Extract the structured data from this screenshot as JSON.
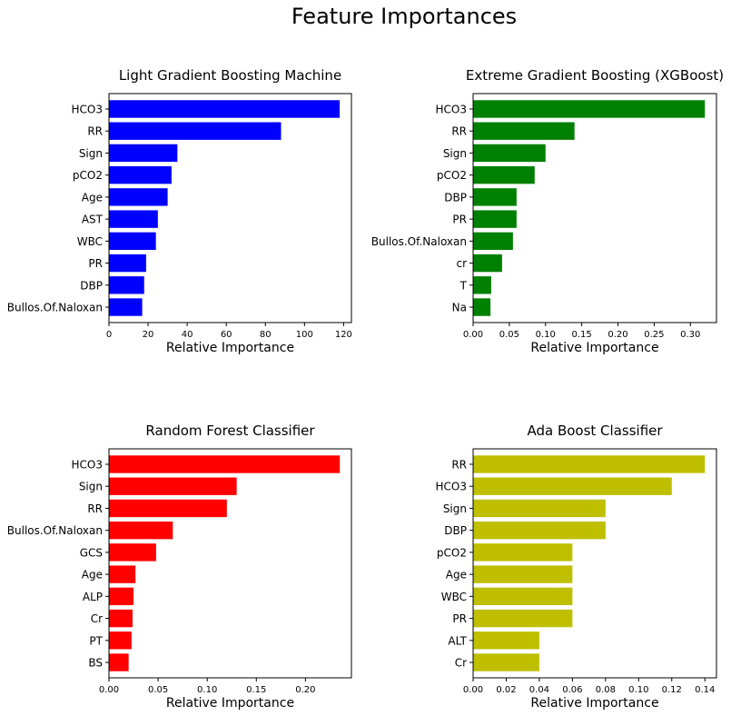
{
  "figure": {
    "title": "Feature Importances"
  },
  "chart_data": [
    {
      "type": "bar",
      "orientation": "horizontal",
      "title": "Light Gradient Boosting Machine",
      "xlabel": "Relative Importance",
      "ylabel": "",
      "color": "#0000ff",
      "categories": [
        "HCO3",
        "RR",
        "Sign",
        "pCO2",
        "Age",
        "AST",
        "WBC",
        "PR",
        "DBP",
        "Bullos.Of.Naloxan"
      ],
      "values": [
        118,
        88,
        35,
        32,
        30,
        25,
        24,
        19,
        18,
        17
      ],
      "xlim": [
        0,
        124
      ],
      "xticks": [
        0,
        20,
        40,
        60,
        80,
        100,
        120
      ],
      "xtick_labels": [
        "0",
        "20",
        "40",
        "60",
        "80",
        "100",
        "120"
      ],
      "grid": false
    },
    {
      "type": "bar",
      "orientation": "horizontal",
      "title": "Extreme Gradient Boosting (XGBoost)",
      "xlabel": "Relative Importance",
      "ylabel": "",
      "color": "#008000",
      "categories": [
        "HCO3",
        "RR",
        "Sign",
        "pCO2",
        "DBP",
        "PR",
        "Bullos.Of.Naloxan",
        "cr",
        "T",
        "Na"
      ],
      "values": [
        0.32,
        0.14,
        0.1,
        0.085,
        0.06,
        0.06,
        0.055,
        0.04,
        0.025,
        0.024
      ],
      "xlim": [
        0,
        0.336
      ],
      "xticks": [
        0,
        0.05,
        0.1,
        0.15,
        0.2,
        0.25,
        0.3
      ],
      "xtick_labels": [
        "0.00",
        "0.05",
        "0.10",
        "0.15",
        "0.20",
        "0.25",
        "0.30"
      ],
      "grid": false
    },
    {
      "type": "bar",
      "orientation": "horizontal",
      "title": "Random Forest Classifier",
      "xlabel": "Relative Importance",
      "ylabel": "",
      "color": "#ff0000",
      "categories": [
        "HCO3",
        "Sign",
        "RR",
        "Bullos.Of.Naloxan",
        "GCS",
        "Age",
        "ALP",
        "Cr",
        "PT",
        "BS"
      ],
      "values": [
        0.235,
        0.13,
        0.12,
        0.065,
        0.048,
        0.027,
        0.025,
        0.024,
        0.023,
        0.02
      ],
      "xlim": [
        0,
        0.2468
      ],
      "xticks": [
        0,
        0.05,
        0.1,
        0.15,
        0.2
      ],
      "xtick_labels": [
        "0.00",
        "0.05",
        "0.10",
        "0.15",
        "0.20"
      ],
      "grid": false
    },
    {
      "type": "bar",
      "orientation": "horizontal",
      "title": "Ada Boost Classifier",
      "xlabel": "Relative Importance",
      "ylabel": "",
      "color": "#bfbf00",
      "categories": [
        "RR",
        "HCO3",
        "Sign",
        "DBP",
        "pCO2",
        "Age",
        "WBC",
        "PR",
        "ALT",
        "Cr"
      ],
      "values": [
        0.14,
        0.12,
        0.08,
        0.08,
        0.06,
        0.06,
        0.06,
        0.06,
        0.04,
        0.04
      ],
      "xlim": [
        0,
        0.147
      ],
      "xticks": [
        0,
        0.02,
        0.04,
        0.06,
        0.08,
        0.1,
        0.12,
        0.14
      ],
      "xtick_labels": [
        "0.00",
        "0.02",
        "0.04",
        "0.06",
        "0.08",
        "0.10",
        "0.12",
        "0.14"
      ],
      "grid": false
    }
  ]
}
